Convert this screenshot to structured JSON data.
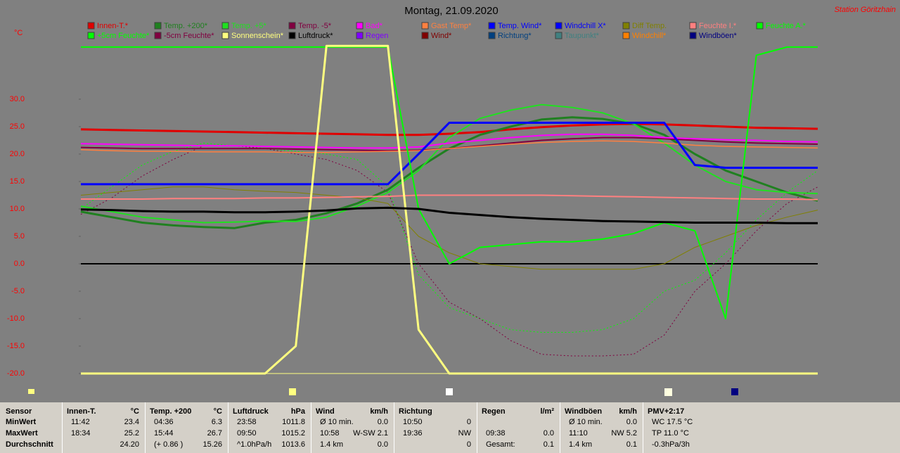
{
  "chart_data": {
    "type": "line",
    "title": "Montag, 21.09.2020",
    "station": "Station Göritzhain",
    "y_label": "°C",
    "ylim": [
      -20,
      40
    ],
    "yticks": [
      {
        "value": -20,
        "label": "-20.0"
      },
      {
        "value": -15,
        "label": "-15.0"
      },
      {
        "value": -10,
        "label": "-10.0"
      },
      {
        "value": -5,
        "label": "-5.0"
      },
      {
        "value": 0,
        "label": "0.0"
      },
      {
        "value": 5,
        "label": "5.0"
      },
      {
        "value": 10,
        "label": "10.0"
      },
      {
        "value": 15,
        "label": "15.0"
      },
      {
        "value": 20,
        "label": "20.0"
      },
      {
        "value": 25,
        "label": "25.0"
      },
      {
        "value": 30,
        "label": "30.0"
      }
    ],
    "categories": [
      null,
      null,
      null,
      null,
      null,
      null,
      null,
      null,
      null,
      null,
      null,
      null,
      null,
      null,
      null,
      null,
      null,
      null,
      null,
      null,
      null,
      null,
      null,
      null,
      null
    ],
    "series": [
      {
        "name": "Innen-T.*",
        "color": "#e00000",
        "width": 3,
        "values": [
          24.5,
          24.4,
          24.3,
          24.2,
          24.1,
          24.0,
          23.9,
          23.8,
          23.7,
          23.6,
          23.5,
          23.5,
          23.7,
          24.0,
          24.5,
          24.9,
          25.2,
          25.4,
          25.5,
          25.4,
          25.2,
          25.0,
          24.8,
          24.7,
          24.6
        ]
      },
      {
        "name": "Temp. +200*",
        "color": "#208020",
        "width": 3,
        "values": [
          9.5,
          8.5,
          7.5,
          7,
          6.7,
          6.5,
          7.5,
          8,
          9.2,
          11,
          13.5,
          17.5,
          21,
          23.5,
          25,
          26.3,
          26.7,
          26.4,
          25.5,
          23.5,
          20,
          17,
          15,
          13,
          11.5
        ]
      },
      {
        "name": "Temp. +5*",
        "color": "#20e020",
        "width": 2,
        "values": [
          10.5,
          9.5,
          8.5,
          8,
          7.5,
          7.6,
          7.8,
          7.7,
          8.5,
          10.5,
          13,
          17,
          23,
          26.5,
          28,
          29,
          28.5,
          27.5,
          25.5,
          22,
          18,
          15,
          13.5,
          13,
          12.8
        ]
      },
      {
        "name": "Temp. -5*",
        "color": "#800040",
        "width": 2,
        "values": [
          21.2,
          21.1,
          21,
          21,
          21,
          21,
          21,
          20.9,
          20.8,
          20.7,
          20.6,
          20.7,
          21,
          21.5,
          22,
          22.5,
          22.8,
          23,
          23,
          22.8,
          22.5,
          22.2,
          22,
          21.9,
          21.8
        ]
      },
      {
        "name": "Bad*",
        "color": "#ff00ff",
        "width": 2,
        "values": [
          21.9,
          21.8,
          21.7,
          21.6,
          21.5,
          21.5,
          21.4,
          21.3,
          21.2,
          21.1,
          21.1,
          21.3,
          22,
          22.5,
          23,
          23.4,
          23.6,
          23.6,
          23.4,
          23.0,
          22.8,
          22.6,
          22.5,
          22.3,
          22.2
        ]
      },
      {
        "name": "Gast Temp*",
        "color": "#ff8040",
        "width": 1.5,
        "values": [
          20.8,
          20.6,
          20.5,
          20.5,
          20.4,
          20.4,
          20.4,
          20.3,
          20.3,
          20.4,
          20.5,
          20.6,
          21,
          21.4,
          21.8,
          22.1,
          22.3,
          22.4,
          22.3,
          22.0,
          21.6,
          21.4,
          21.3,
          21.2,
          21.1
        ]
      },
      {
        "name": "Temp. Wind*",
        "color": "#0000ff"
      },
      {
        "name": "Windchill X*",
        "color": "#0000ff",
        "width": 3,
        "values": [
          14.5,
          14.5,
          14.5,
          14.5,
          14.5,
          14.5,
          14.5,
          14.5,
          14.5,
          14.5,
          14.5,
          20,
          25.7,
          25.7,
          25.7,
          25.7,
          25.7,
          25.7,
          25.7,
          25.7,
          18,
          17.5,
          17.5,
          17.5,
          17.5
        ]
      },
      {
        "name": "Diff Temp.",
        "color": "#808000",
        "width": 1,
        "values": [
          12.5,
          13,
          13.5,
          14,
          14,
          13.5,
          13.2,
          13,
          12.5,
          12,
          11,
          5,
          2,
          0,
          -0.5,
          -1,
          -1,
          -1,
          -1,
          0,
          3,
          5,
          7,
          8.5,
          9.8
        ]
      },
      {
        "name": "Feuchte I.*",
        "color": "#ff8080",
        "width": 2,
        "values": [
          11.8,
          11.8,
          11.8,
          11.9,
          11.9,
          11.9,
          12,
          12,
          12.1,
          12.2,
          12.3,
          12.5,
          12.5,
          12.5,
          12.5,
          12.5,
          12.4,
          12.3,
          12.2,
          12.1,
          12,
          11.9,
          11.8,
          11.8,
          11.7
        ]
      },
      {
        "name": "Feuchte A.*",
        "color": "#00ff00",
        "width": 2,
        "values": [
          39.5,
          39.5,
          39.5,
          39.5,
          39.5,
          39.5,
          39.5,
          39.5,
          39.5,
          39.5,
          39.5,
          10,
          0,
          3,
          3.5,
          4,
          4,
          4.5,
          5.5,
          7.5,
          6,
          -10,
          38,
          39.5,
          39.5
        ]
      },
      {
        "name": "+5cm Feuchte*",
        "color": "#00ff00",
        "width": 1,
        "dash": true,
        "values": [
          10,
          14,
          18,
          20.5,
          22,
          21.5,
          21,
          20.5,
          20,
          19,
          14,
          -2,
          -8,
          -10,
          -12,
          -12.5,
          -12.5,
          -12,
          -10,
          -5,
          -3,
          2,
          8,
          13,
          17
        ]
      },
      {
        "name": "-5cm Feuchte*",
        "color": "#800040",
        "width": 1,
        "dash": true,
        "values": [
          9,
          12,
          16,
          19,
          21.5,
          21.5,
          21,
          20,
          19,
          17,
          13,
          0,
          -7,
          -10,
          -14,
          -16.5,
          -16.8,
          -16.8,
          -16.5,
          -13,
          -5,
          0,
          6,
          11,
          14
        ]
      },
      {
        "name": "Sonnenschein*",
        "color": "#ffff80",
        "width": 3,
        "values": [
          -20,
          -20,
          -20,
          -20,
          -20,
          -20,
          -20,
          -15,
          39.7,
          39.7,
          39.7,
          -12,
          -20,
          -20,
          -20,
          -20,
          -20,
          -20,
          -20,
          -20,
          -20,
          -20,
          -20,
          -20,
          -20
        ]
      },
      {
        "name": "Luftdruck*",
        "color": "#000000",
        "width": 3,
        "values": [
          9.9,
          9.8,
          9.6,
          9.5,
          9.5,
          9.4,
          9.4,
          9.5,
          9.7,
          10.1,
          10.2,
          10.0,
          9.3,
          8.9,
          8.5,
          8.2,
          8.0,
          7.8,
          7.7,
          7.6,
          7.5,
          7.5,
          7.5,
          7.4,
          7.4
        ]
      },
      {
        "name": "Regen",
        "color": "#8000ff"
      },
      {
        "name": "Wind*",
        "color": "#800000"
      },
      {
        "name": "Richtung*",
        "color": "#004080"
      },
      {
        "name": "Taupunkt*",
        "color": "#408080"
      },
      {
        "name": "Windchill*",
        "color": "#ff8000"
      },
      {
        "name": "Windböen*",
        "color": "#000080"
      }
    ]
  },
  "table": {
    "row_header": "Sensor",
    "row_labels": [
      "MinWert",
      "MaxWert",
      "Durchschnitt"
    ],
    "columns": [
      {
        "header": "Innen-T.",
        "unit": "°C",
        "rows": [
          [
            "11:42",
            "23.4"
          ],
          [
            "18:34",
            "25.2"
          ],
          [
            null,
            "24.20"
          ]
        ]
      },
      {
        "header": "Temp. +200",
        "unit": "°C",
        "rows": [
          [
            "04:36",
            "6.3"
          ],
          [
            "15:44",
            "26.7"
          ],
          [
            "(+ 0.86 )",
            "15.26"
          ]
        ]
      },
      {
        "header": "Luftdruck",
        "unit": "hPa",
        "rows": [
          [
            "23:58",
            "1011.8"
          ],
          [
            "09:50",
            "1015.2"
          ],
          [
            "^1.0hPa/h",
            "1013.6"
          ]
        ]
      },
      {
        "header": "Wind",
        "unit": "km/h",
        "rows": [
          [
            "Ø 10 min.",
            "0.0"
          ],
          [
            "10:58",
            "W-SW 2.1"
          ],
          [
            "1.4 km",
            "0.0"
          ]
        ]
      },
      {
        "header": "Richtung",
        "rows": [
          [
            "10:50",
            "0"
          ],
          [
            "19:36",
            "NW"
          ],
          [
            null,
            "0"
          ]
        ]
      },
      {
        "header": "Regen",
        "unit": "l/m²",
        "rows": [
          [
            null,
            null
          ],
          [
            "09:38",
            "0.0"
          ],
          [
            "Gesamt:",
            "0.1"
          ]
        ]
      },
      {
        "header": "Windböen",
        "unit": "km/h",
        "rows": [
          [
            "Ø 10 min.",
            "0.0"
          ],
          [
            "11:10",
            "NW 5.2"
          ],
          [
            "1.4 km",
            "0.1"
          ]
        ]
      },
      {
        "header": "PMV+2:17",
        "rows": [
          [
            "WC 17.5 °C"
          ],
          [
            "TP 11.0 °C"
          ],
          [
            "-0.3hPa/3h"
          ]
        ]
      }
    ]
  }
}
